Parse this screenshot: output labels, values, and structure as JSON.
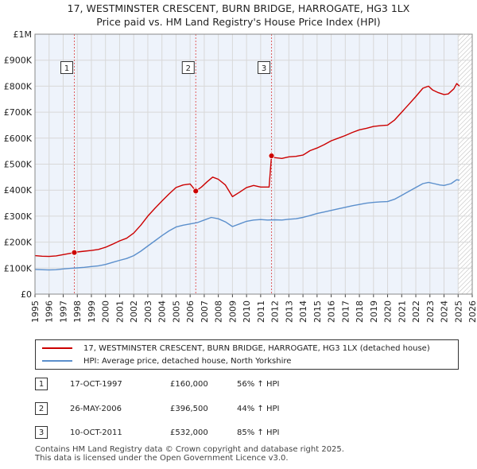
{
  "title": {
    "line1": "17, WESTMINSTER CRESCENT, BURN BRIDGE, HARROGATE, HG3 1LX",
    "line2": "Price paid vs. HM Land Registry's House Price Index (HPI)"
  },
  "colors": {
    "property": "#cc0000",
    "hpi": "#5b8fcc",
    "grid": "#d8d8d8",
    "plot_bg": "#eef3fb",
    "hatch": "#999999"
  },
  "chart_data": {
    "type": "line",
    "xlim": [
      1995,
      2026
    ],
    "ylim": [
      0,
      1000000
    ],
    "x_ticks": [
      "1995",
      "1996",
      "1997",
      "1998",
      "1999",
      "2000",
      "2001",
      "2002",
      "2003",
      "2004",
      "2005",
      "2006",
      "2007",
      "2008",
      "2009",
      "2010",
      "2011",
      "2012",
      "2013",
      "2014",
      "2015",
      "2016",
      "2017",
      "2018",
      "2019",
      "2020",
      "2021",
      "2022",
      "2023",
      "2024",
      "2025",
      "2026"
    ],
    "y_ticks": [
      {
        "value": 0,
        "label": "£0"
      },
      {
        "value": 100000,
        "label": "£100K"
      },
      {
        "value": 200000,
        "label": "£200K"
      },
      {
        "value": 300000,
        "label": "£300K"
      },
      {
        "value": 400000,
        "label": "£400K"
      },
      {
        "value": 500000,
        "label": "£500K"
      },
      {
        "value": 600000,
        "label": "£600K"
      },
      {
        "value": 700000,
        "label": "£700K"
      },
      {
        "value": 800000,
        "label": "£800K"
      },
      {
        "value": 900000,
        "label": "£900K"
      },
      {
        "value": 1000000,
        "label": "£1M"
      }
    ],
    "forecast_start": 2025.0,
    "series": [
      {
        "name": "17, WESTMINSTER CRESCENT, BURN BRIDGE, HARROGATE, HG3 1LX (detached house)",
        "color": "#cc0000",
        "points": [
          [
            1995.0,
            148000
          ],
          [
            1995.5,
            146000
          ],
          [
            1996.0,
            145000
          ],
          [
            1996.5,
            147000
          ],
          [
            1997.0,
            152000
          ],
          [
            1997.5,
            157000
          ],
          [
            1997.79,
            160000
          ],
          [
            1998.0,
            162000
          ],
          [
            1998.5,
            165000
          ],
          [
            1999.0,
            168000
          ],
          [
            1999.5,
            172000
          ],
          [
            2000.0,
            180000
          ],
          [
            2000.5,
            192000
          ],
          [
            2001.0,
            205000
          ],
          [
            2001.5,
            215000
          ],
          [
            2002.0,
            235000
          ],
          [
            2002.5,
            265000
          ],
          [
            2003.0,
            300000
          ],
          [
            2003.5,
            330000
          ],
          [
            2004.0,
            358000
          ],
          [
            2004.5,
            385000
          ],
          [
            2005.0,
            410000
          ],
          [
            2005.5,
            420000
          ],
          [
            2006.0,
            424000
          ],
          [
            2006.4,
            396500
          ],
          [
            2006.8,
            412000
          ],
          [
            2007.2,
            432000
          ],
          [
            2007.6,
            450000
          ],
          [
            2008.0,
            442000
          ],
          [
            2008.5,
            420000
          ],
          [
            2009.0,
            375000
          ],
          [
            2009.5,
            392000
          ],
          [
            2010.0,
            410000
          ],
          [
            2010.5,
            418000
          ],
          [
            2011.0,
            412000
          ],
          [
            2011.6,
            412000
          ],
          [
            2011.77,
            532000
          ],
          [
            2012.0,
            525000
          ],
          [
            2012.5,
            522000
          ],
          [
            2013.0,
            528000
          ],
          [
            2013.5,
            530000
          ],
          [
            2014.0,
            535000
          ],
          [
            2014.5,
            552000
          ],
          [
            2015.0,
            562000
          ],
          [
            2015.5,
            575000
          ],
          [
            2016.0,
            590000
          ],
          [
            2016.5,
            600000
          ],
          [
            2017.0,
            610000
          ],
          [
            2017.5,
            622000
          ],
          [
            2018.0,
            632000
          ],
          [
            2018.5,
            638000
          ],
          [
            2019.0,
            645000
          ],
          [
            2019.5,
            648000
          ],
          [
            2020.0,
            650000
          ],
          [
            2020.5,
            670000
          ],
          [
            2021.0,
            700000
          ],
          [
            2021.5,
            730000
          ],
          [
            2022.0,
            760000
          ],
          [
            2022.5,
            792000
          ],
          [
            2022.9,
            800000
          ],
          [
            2023.2,
            785000
          ],
          [
            2023.6,
            775000
          ],
          [
            2024.0,
            768000
          ],
          [
            2024.3,
            770000
          ],
          [
            2024.7,
            790000
          ],
          [
            2024.9,
            810000
          ],
          [
            2025.1,
            800000
          ]
        ]
      },
      {
        "name": "HPI: Average price, detached house, North Yorkshire",
        "color": "#5b8fcc",
        "points": [
          [
            1995.0,
            95000
          ],
          [
            1995.5,
            94000
          ],
          [
            1996.0,
            93000
          ],
          [
            1996.5,
            94000
          ],
          [
            1997.0,
            97000
          ],
          [
            1997.5,
            99000
          ],
          [
            1998.0,
            101000
          ],
          [
            1998.5,
            103000
          ],
          [
            1999.0,
            106000
          ],
          [
            1999.5,
            109000
          ],
          [
            2000.0,
            114000
          ],
          [
            2000.5,
            122000
          ],
          [
            2001.0,
            130000
          ],
          [
            2001.5,
            137000
          ],
          [
            2002.0,
            148000
          ],
          [
            2002.5,
            165000
          ],
          [
            2003.0,
            185000
          ],
          [
            2003.5,
            205000
          ],
          [
            2004.0,
            225000
          ],
          [
            2004.5,
            243000
          ],
          [
            2005.0,
            258000
          ],
          [
            2005.5,
            265000
          ],
          [
            2006.0,
            270000
          ],
          [
            2006.5,
            275000
          ],
          [
            2007.0,
            285000
          ],
          [
            2007.5,
            295000
          ],
          [
            2008.0,
            290000
          ],
          [
            2008.5,
            278000
          ],
          [
            2009.0,
            260000
          ],
          [
            2009.5,
            270000
          ],
          [
            2010.0,
            280000
          ],
          [
            2010.5,
            285000
          ],
          [
            2011.0,
            287000
          ],
          [
            2011.5,
            285000
          ],
          [
            2012.0,
            286000
          ],
          [
            2012.5,
            285000
          ],
          [
            2013.0,
            288000
          ],
          [
            2013.5,
            290000
          ],
          [
            2014.0,
            295000
          ],
          [
            2014.5,
            302000
          ],
          [
            2015.0,
            310000
          ],
          [
            2015.5,
            316000
          ],
          [
            2016.0,
            322000
          ],
          [
            2016.5,
            328000
          ],
          [
            2017.0,
            334000
          ],
          [
            2017.5,
            340000
          ],
          [
            2018.0,
            345000
          ],
          [
            2018.5,
            350000
          ],
          [
            2019.0,
            353000
          ],
          [
            2019.5,
            355000
          ],
          [
            2020.0,
            356000
          ],
          [
            2020.5,
            365000
          ],
          [
            2021.0,
            380000
          ],
          [
            2021.5,
            395000
          ],
          [
            2022.0,
            410000
          ],
          [
            2022.5,
            425000
          ],
          [
            2022.9,
            430000
          ],
          [
            2023.3,
            425000
          ],
          [
            2023.7,
            420000
          ],
          [
            2024.0,
            418000
          ],
          [
            2024.5,
            425000
          ],
          [
            2024.9,
            440000
          ],
          [
            2025.1,
            438000
          ]
        ]
      }
    ],
    "sales": [
      {
        "id": "1",
        "x": 1997.79,
        "y": 160000
      },
      {
        "id": "2",
        "x": 2006.4,
        "y": 396500
      },
      {
        "id": "3",
        "x": 2011.77,
        "y": 532000
      }
    ],
    "marker_box_value": 870000
  },
  "legend": {
    "property_label": "17, WESTMINSTER CRESCENT, BURN BRIDGE, HARROGATE, HG3 1LX (detached house)",
    "hpi_label": "HPI: Average price, detached house, North Yorkshire"
  },
  "transactions": [
    {
      "id": "1",
      "date": "17-OCT-1997",
      "price": "£160,000",
      "hpi": "56% ↑ HPI"
    },
    {
      "id": "2",
      "date": "26-MAY-2006",
      "price": "£396,500",
      "hpi": "44% ↑ HPI"
    },
    {
      "id": "3",
      "date": "10-OCT-2011",
      "price": "£532,000",
      "hpi": "85% ↑ HPI"
    }
  ],
  "footer": {
    "line1": "Contains HM Land Registry data © Crown copyright and database right 2025.",
    "line2": "This data is licensed under the Open Government Licence v3.0."
  }
}
